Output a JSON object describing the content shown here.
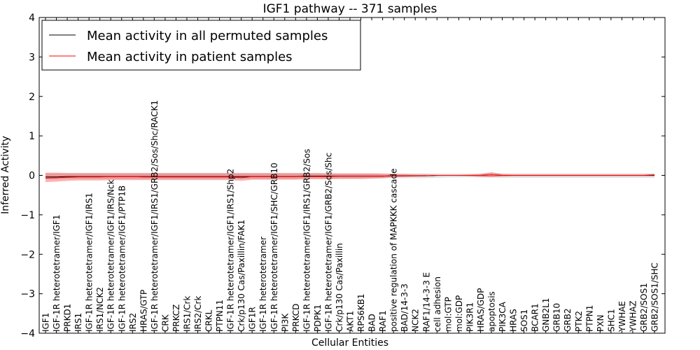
{
  "chart_data": {
    "type": "line",
    "title": "IGF1 pathway -- 371 samples",
    "xlabel": "Cellular Entities",
    "ylabel": "Inferred Activity",
    "ylim": [
      -4,
      4
    ],
    "yticks": [
      "−4",
      "−3",
      "−2",
      "−1",
      "0",
      "1",
      "2",
      "3",
      "4"
    ],
    "ytick_values": [
      -4,
      -3,
      -2,
      -1,
      0,
      1,
      2,
      3,
      4
    ],
    "legend_position": "top-left",
    "categories": [
      "IGF1",
      "IGF-1R heterotetramer/IGF1",
      "PRKD1",
      "IRS1",
      "IGF-1R heterotetramer/IGF1/IRS1",
      "IRS1/NCK2",
      "IGF-1R heterotetramer/IGF1/IRS/Nck",
      "IGF-1R heterotetramer/IGF1/PTP1B",
      "IRS2",
      "HRAS/GTP",
      "IGF-1R heterotetramer/IGF1/IRS1/GRB2/Sos/Shc/RACK1",
      "CRK",
      "PRKCZ",
      "IRS1/Crk",
      "IRS2/Crk",
      "CRKL",
      "PTPN11",
      "IGF-1R heterotetramer/IGF1/IRS1/Shp2",
      "Crk/p130 Cas/Paxillin/FAK1",
      "IGF1R",
      "IGF-1R heterotetramer",
      "IGF-1R heterotetramer/IGF1/SHC/GRB10",
      "PI3K",
      "PRKCD",
      "IGF-1R heterotetramer/IGF1/IRS1/GRB2/Sos",
      "PDPK1",
      "IGF-1R heterotetramer/IGF1/GRB2/Sos/Shc",
      "Crk/p130 Cas/Paxillin",
      "AKT1",
      "RPS6KB1",
      "BAD",
      "RAF1",
      "positive regulation of MAPKKK cascade",
      "BAD/14-3-3",
      "NCK2",
      "RAF1/14-3-3 E",
      "cell adhesion",
      "mol:GTP",
      "mol:GDP",
      "PIK3R1",
      "HRAS/GDP",
      "apoptosis",
      "PIK3CA",
      "HRAS",
      "SOS1",
      "BCAR1",
      "GNB2L1",
      "GRB10",
      "GRB2",
      "PTK2",
      "PTPN1",
      "PXN",
      "SHC1",
      "YWHAE",
      "YWHAZ",
      "GRB2/SOS1",
      "GRB2/SOS1/SHC"
    ],
    "series": [
      {
        "name": "Mean activity in all permuted samples",
        "color": "#000000",
        "values": [
          -0.04,
          -0.04,
          -0.03,
          -0.03,
          -0.03,
          -0.03,
          -0.03,
          -0.03,
          -0.03,
          -0.03,
          -0.03,
          -0.03,
          -0.03,
          -0.03,
          -0.03,
          -0.03,
          -0.03,
          -0.03,
          -0.03,
          -0.03,
          -0.03,
          -0.03,
          -0.03,
          -0.03,
          -0.02,
          -0.02,
          -0.02,
          -0.02,
          -0.02,
          -0.02,
          -0.02,
          -0.02,
          -0.01,
          -0.01,
          -0.01,
          -0.01,
          0,
          0,
          0,
          0,
          0,
          0.01,
          0,
          0,
          0,
          0,
          0,
          0,
          0,
          0,
          0,
          0,
          0,
          0,
          0,
          0,
          0
        ],
        "band_low": [
          -0.1,
          -0.1,
          -0.09,
          -0.09,
          -0.09,
          -0.09,
          -0.09,
          -0.09,
          -0.09,
          -0.09,
          -0.09,
          -0.09,
          -0.09,
          -0.09,
          -0.09,
          -0.09,
          -0.09,
          -0.09,
          -0.09,
          -0.09,
          -0.09,
          -0.09,
          -0.09,
          -0.09,
          -0.08,
          -0.08,
          -0.08,
          -0.08,
          -0.08,
          -0.08,
          -0.08,
          -0.08,
          -0.07,
          -0.07,
          -0.07,
          -0.07,
          -0.06,
          -0.05,
          -0.05,
          -0.05,
          -0.05,
          -0.05,
          -0.06,
          -0.06,
          -0.06,
          -0.06,
          -0.06,
          -0.06,
          -0.06,
          -0.06,
          -0.06,
          -0.06,
          -0.06,
          -0.06,
          -0.06,
          -0.06,
          -0.06
        ],
        "band_high": [
          0.05,
          0.05,
          0.05,
          0.05,
          0.05,
          0.05,
          0.05,
          0.05,
          0.05,
          0.05,
          0.05,
          0.05,
          0.05,
          0.05,
          0.05,
          0.05,
          0.05,
          0.05,
          0.05,
          0.05,
          0.05,
          0.05,
          0.05,
          0.05,
          0.05,
          0.05,
          0.05,
          0.05,
          0.05,
          0.05,
          0.05,
          0.05,
          0.05,
          0.05,
          0.05,
          0.05,
          0.04,
          0.04,
          0.04,
          0.04,
          0.05,
          0.06,
          0.05,
          0.05,
          0.05,
          0.05,
          0.05,
          0.05,
          0.05,
          0.05,
          0.05,
          0.05,
          0.05,
          0.05,
          0.05,
          0.05,
          0.05
        ]
      },
      {
        "name": "Mean activity in patient samples",
        "color": "#ff0000",
        "values": [
          -0.07,
          -0.06,
          -0.05,
          -0.04,
          -0.04,
          -0.04,
          -0.03,
          -0.03,
          -0.03,
          -0.04,
          -0.04,
          -0.04,
          -0.04,
          -0.04,
          -0.04,
          -0.04,
          -0.04,
          -0.04,
          -0.06,
          -0.03,
          -0.03,
          -0.03,
          -0.03,
          -0.03,
          -0.03,
          -0.03,
          -0.03,
          -0.02,
          -0.02,
          -0.02,
          -0.02,
          -0.02,
          -0.01,
          -0.01,
          -0.01,
          -0.01,
          0,
          0,
          0,
          0,
          0,
          0.01,
          0,
          0,
          0,
          0,
          0,
          0,
          0,
          0,
          0,
          0,
          0,
          0,
          0,
          0,
          0.01
        ],
        "band_low": [
          -0.17,
          -0.16,
          -0.14,
          -0.13,
          -0.13,
          -0.13,
          -0.12,
          -0.12,
          -0.12,
          -0.12,
          -0.12,
          -0.12,
          -0.12,
          -0.12,
          -0.12,
          -0.12,
          -0.12,
          -0.12,
          -0.14,
          -0.11,
          -0.11,
          -0.11,
          -0.11,
          -0.11,
          -0.1,
          -0.1,
          -0.1,
          -0.09,
          -0.09,
          -0.09,
          -0.08,
          -0.07,
          -0.05,
          -0.04,
          -0.03,
          -0.02,
          -0.01,
          -0.01,
          -0.01,
          -0.02,
          -0.04,
          -0.05,
          -0.03,
          -0.02,
          -0.02,
          -0.02,
          -0.02,
          -0.02,
          -0.02,
          -0.02,
          -0.02,
          -0.02,
          -0.02,
          -0.02,
          -0.02,
          -0.02,
          -0.02
        ],
        "band_high": [
          0.07,
          0.07,
          0.06,
          0.06,
          0.06,
          0.06,
          0.06,
          0.06,
          0.06,
          0.06,
          0.06,
          0.06,
          0.06,
          0.06,
          0.06,
          0.06,
          0.06,
          0.06,
          0.06,
          0.06,
          0.06,
          0.06,
          0.06,
          0.06,
          0.06,
          0.06,
          0.05,
          0.05,
          0.05,
          0.05,
          0.05,
          0.04,
          0.03,
          0.03,
          0.02,
          0.02,
          0.01,
          0.01,
          0.01,
          0.02,
          0.03,
          0.08,
          0.03,
          0.02,
          0.02,
          0.02,
          0.02,
          0.02,
          0.02,
          0.02,
          0.02,
          0.02,
          0.02,
          0.02,
          0.02,
          0.02,
          0.03
        ]
      }
    ]
  }
}
